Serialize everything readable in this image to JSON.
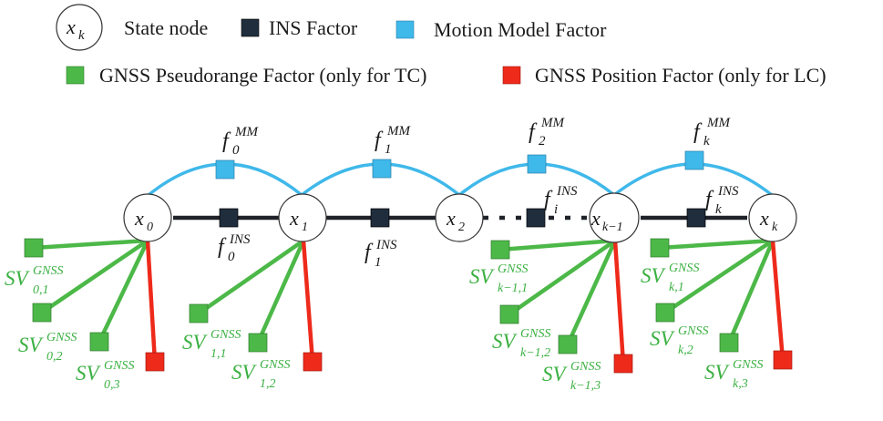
{
  "legend": {
    "state_node": {
      "symbol": "x",
      "symbol_sub": "k",
      "label": "State node"
    },
    "ins_factor": {
      "label": "INS Factor",
      "color": "#1f2d3d"
    },
    "mm_factor": {
      "label": "Motion Model Factor",
      "color": "#3fb8ea"
    },
    "pseudorange_factor": {
      "label": "GNSS Pseudorange Factor (only for TC)",
      "color": "#4cb848"
    },
    "position_factor": {
      "label": "GNSS Position Factor (only for LC)",
      "color": "#ee2a1b"
    }
  },
  "colors": {
    "mm_edge": "#3fb8ea",
    "ins_edge": "#1f2228",
    "gnss_edge": "#4cb848",
    "position_edge": "#ee2a1b"
  },
  "nodes": [
    {
      "id": "x0",
      "base": "x",
      "sub": "0"
    },
    {
      "id": "x1",
      "base": "x",
      "sub": "1"
    },
    {
      "id": "x2",
      "base": "x",
      "sub": "2"
    },
    {
      "id": "xk1",
      "base": "x",
      "sub": "k−1"
    },
    {
      "id": "xk",
      "base": "x",
      "sub": "k"
    }
  ],
  "mm_labels": [
    {
      "base": "f",
      "sub": "0",
      "sup": "MM"
    },
    {
      "base": "f",
      "sub": "1",
      "sup": "MM"
    },
    {
      "base": "f",
      "sub": "2",
      "sup": "MM"
    },
    {
      "base": "f",
      "sub": "k",
      "sup": "MM"
    }
  ],
  "ins_labels": [
    {
      "base": "f",
      "sub": "0",
      "sup": "INS"
    },
    {
      "base": "f",
      "sub": "1",
      "sup": "INS"
    },
    {
      "base": "f",
      "sub": "i",
      "sup": "INS"
    },
    {
      "base": "f",
      "sub": "k",
      "sup": "INS"
    }
  ],
  "sv_labels": [
    {
      "base": "SV",
      "sub": "0,1",
      "sup": "GNSS"
    },
    {
      "base": "SV",
      "sub": "0,2",
      "sup": "GNSS"
    },
    {
      "base": "SV",
      "sub": "0,3",
      "sup": "GNSS"
    },
    {
      "base": "SV",
      "sub": "1,1",
      "sup": "GNSS"
    },
    {
      "base": "SV",
      "sub": "1,2",
      "sup": "GNSS"
    },
    {
      "base": "SV",
      "sub": "k−1,1",
      "sup": "GNSS"
    },
    {
      "base": "SV",
      "sub": "k−1,2",
      "sup": "GNSS"
    },
    {
      "base": "SV",
      "sub": "k−1,3",
      "sup": "GNSS"
    },
    {
      "base": "SV",
      "sub": "k,1",
      "sup": "GNSS"
    },
    {
      "base": "SV",
      "sub": "k,2",
      "sup": "GNSS"
    },
    {
      "base": "SV",
      "sub": "k,3",
      "sup": "GNSS"
    }
  ]
}
